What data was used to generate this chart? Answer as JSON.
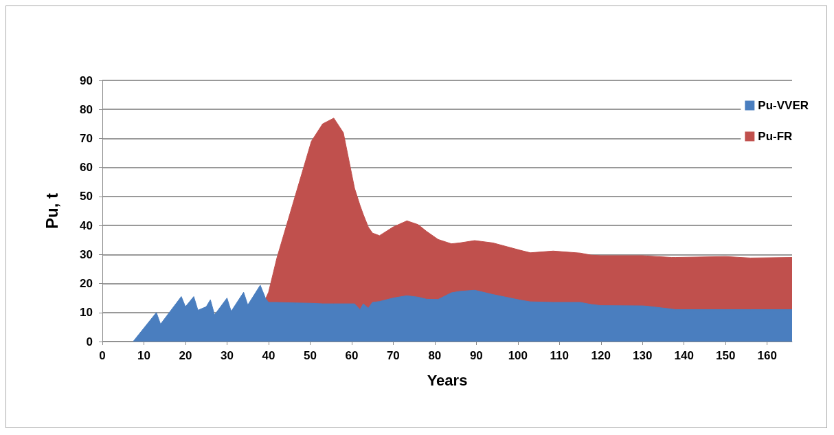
{
  "chart_data": {
    "type": "area",
    "xlabel": "Years",
    "ylabel": "Pu, t",
    "stacked": true,
    "x": [
      7.4,
      13,
      14,
      19,
      20,
      22,
      23,
      25,
      26,
      27,
      30,
      31,
      34,
      35,
      38,
      39.3,
      40,
      42,
      46.5,
      50.3,
      53,
      55.7,
      58,
      60.7,
      62,
      62.8,
      64,
      65,
      66.7,
      70,
      73.3,
      76,
      78,
      80.8,
      84,
      86,
      89.6,
      94,
      100.5,
      103,
      108.5,
      115,
      117.6,
      120,
      130,
      131,
      137,
      138,
      150,
      156,
      166
    ],
    "series": [
      {
        "name": "Pu-VVER",
        "color": "#4a7ebf",
        "values": [
          0,
          10,
          6,
          15.5,
          12,
          15.5,
          10.8,
          12,
          14.4,
          9.2,
          15,
          10.4,
          17,
          12.6,
          19.4,
          14.8,
          13.5,
          13.5,
          13.3,
          13.2,
          13,
          13,
          13,
          13,
          11,
          13,
          11.5,
          13.5,
          13.8,
          15,
          15.8,
          15.3,
          14.6,
          14.5,
          16.8,
          17.3,
          17.7,
          16.2,
          14.3,
          13.7,
          13.5,
          13.5,
          12.8,
          12.4,
          12.3,
          12.2,
          11.2,
          11,
          11,
          11,
          11
        ]
      },
      {
        "name": "Pu-FR",
        "color": "#c0504d",
        "values": [
          null,
          null,
          null,
          null,
          null,
          null,
          null,
          null,
          null,
          null,
          null,
          null,
          null,
          null,
          null,
          0,
          3.5,
          15.3,
          37.3,
          55.8,
          62,
          64,
          59,
          39.8,
          36,
          30.8,
          28,
          23.9,
          22.7,
          24.5,
          25.8,
          25,
          23.4,
          20.7,
          16.9,
          16.7,
          17.1,
          17.8,
          17.2,
          16.9,
          17.7,
          17,
          17,
          17.2,
          17.3,
          17.3,
          17.8,
          18,
          18.3,
          17.8,
          18
        ]
      }
    ],
    "xlim": [
      0,
      166
    ],
    "xticks": [
      0,
      10,
      20,
      30,
      40,
      50,
      60,
      70,
      80,
      90,
      100,
      110,
      120,
      130,
      140,
      150,
      160
    ],
    "ylim": [
      0,
      90
    ],
    "yticks": [
      0,
      10,
      20,
      30,
      40,
      50,
      60,
      70,
      80,
      90
    ],
    "grid": "y",
    "legend": "top right"
  }
}
